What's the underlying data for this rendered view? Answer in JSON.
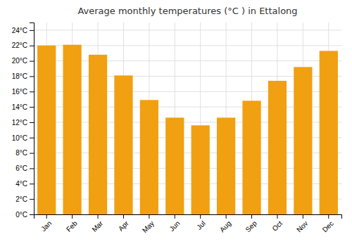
{
  "chart_data": {
    "type": "bar",
    "title": "Average monthly temperatures (°C ) in Ettalong",
    "categories": [
      "Jan",
      "Feb",
      "Mar",
      "Apr",
      "May",
      "Jun",
      "Jul",
      "Aug",
      "Sep",
      "Oct",
      "Nov",
      "Dec"
    ],
    "values": [
      22.0,
      22.1,
      20.8,
      18.1,
      14.9,
      12.6,
      11.6,
      12.6,
      14.8,
      17.4,
      19.2,
      21.3
    ],
    "color": "#F0A010",
    "ylim": [
      0,
      25
    ],
    "yticks": [
      {
        "value": 0,
        "label": "0°C"
      },
      {
        "value": 2,
        "label": "2°C"
      },
      {
        "value": 4,
        "label": "4°C"
      },
      {
        "value": 6,
        "label": "6°C"
      },
      {
        "value": 8,
        "label": "8°C"
      },
      {
        "value": 10,
        "label": "10°C"
      },
      {
        "value": 12,
        "label": "12°C"
      },
      {
        "value": 14,
        "label": "14°C"
      },
      {
        "value": 16,
        "label": "16°C"
      },
      {
        "value": 18,
        "label": "18°C"
      },
      {
        "value": 20,
        "label": "20°C"
      },
      {
        "value": 22,
        "label": "22°C"
      },
      {
        "value": 24,
        "label": "24°C"
      }
    ],
    "grid": true
  }
}
